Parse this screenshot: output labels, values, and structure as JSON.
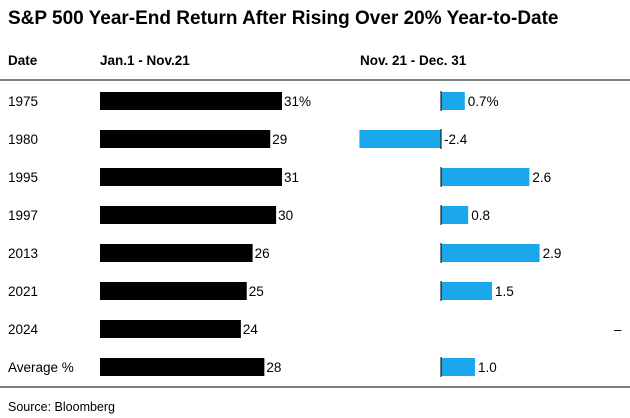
{
  "chart_data": {
    "type": "bar",
    "title": "S&P 500 Year-End Return After Rising Over 20% Year-to-Date",
    "column_headers": {
      "category": "Date",
      "series_1": "Jan.1 - Nov.21",
      "series_2": "Nov. 21 - Dec. 31"
    },
    "categories": [
      "1975",
      "1980",
      "1995",
      "1997",
      "2013",
      "2021",
      "2024",
      "Average %"
    ],
    "series": [
      {
        "name": "Jan.1 - Nov.21",
        "color": "#000000",
        "values": [
          31,
          29,
          31,
          30,
          26,
          25,
          24,
          28
        ],
        "labels": [
          "31%",
          "29",
          "31",
          "30",
          "26",
          "25",
          "24",
          "28"
        ]
      },
      {
        "name": "Nov. 21 - Dec. 31",
        "color": "#1aa7ec",
        "values": [
          0.7,
          -2.4,
          2.6,
          0.8,
          2.9,
          1.5,
          null,
          1.0
        ],
        "labels": [
          "0.7%",
          "-2.4",
          "2.6",
          "0.8",
          "2.9",
          "1.5",
          "–",
          "1.0"
        ]
      }
    ],
    "source": "Source: Bloomberg",
    "legend": "column headers at top",
    "grid": false
  },
  "colors": {
    "series_1": "#000000",
    "series_2": "#1aa7ec",
    "axis": "#000000",
    "divider": "#000000"
  }
}
